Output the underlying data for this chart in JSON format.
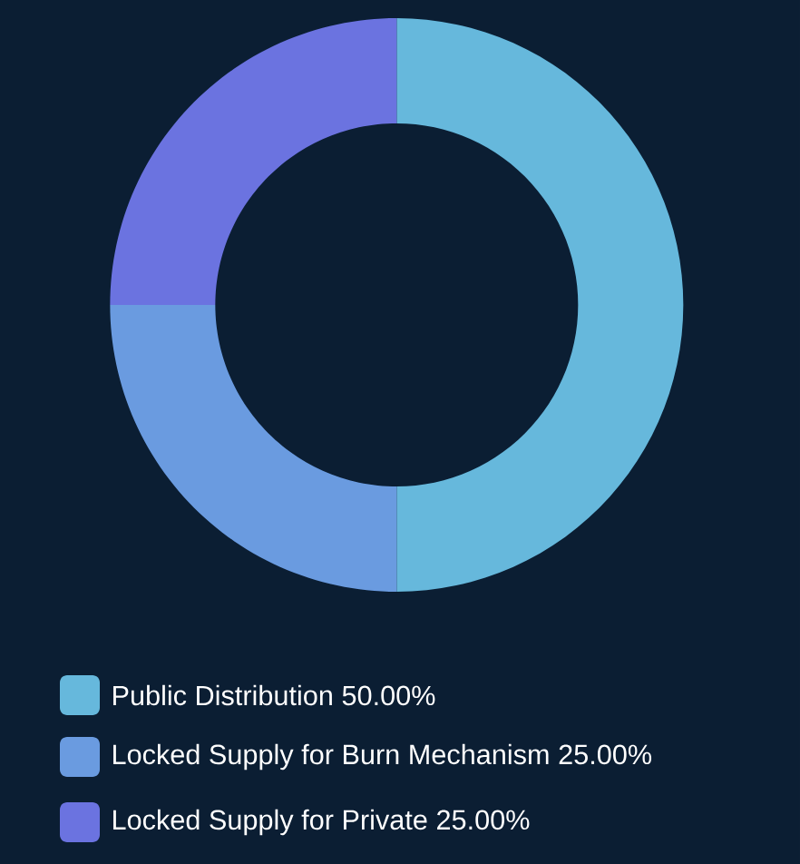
{
  "chart_data": {
    "type": "donut",
    "categories": [
      "Public Distribution",
      "Locked Supply for Burn Mechanism",
      "Locked Supply for Private"
    ],
    "values": [
      50,
      25,
      25
    ],
    "value_labels": [
      "50.00%",
      "25.00%",
      "25.00%"
    ],
    "colors": [
      "#66b8dc",
      "#6a9be0",
      "#6b73e0"
    ],
    "legend": "bottom"
  }
}
